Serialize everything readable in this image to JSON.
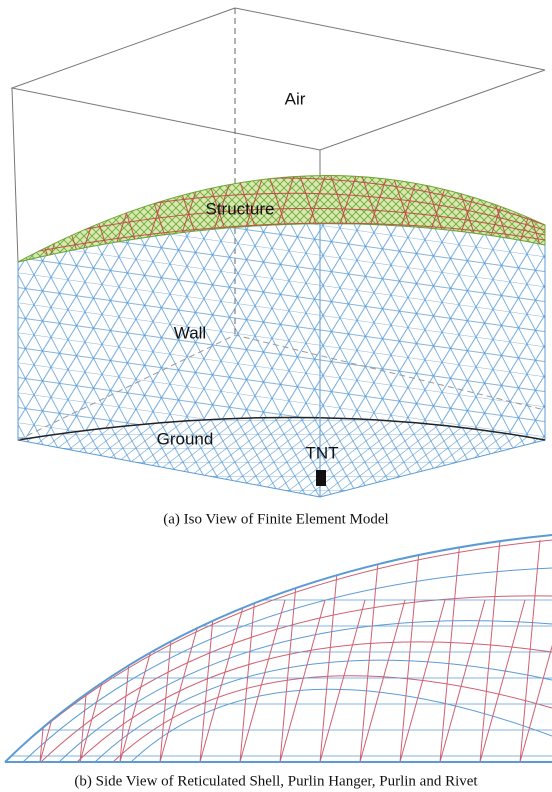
{
  "figure": {
    "panel_a": {
      "labels": {
        "air": "Air",
        "structure": "Structure",
        "wall": "Wall",
        "ground": "Ground",
        "tnt": "TNT"
      },
      "caption": "(a)  Iso View of Finite Element Model"
    },
    "panel_b": {
      "caption": "(b)  Side View of Reticulated Shell, Purlin Hanger, Purlin and Rivet"
    }
  }
}
